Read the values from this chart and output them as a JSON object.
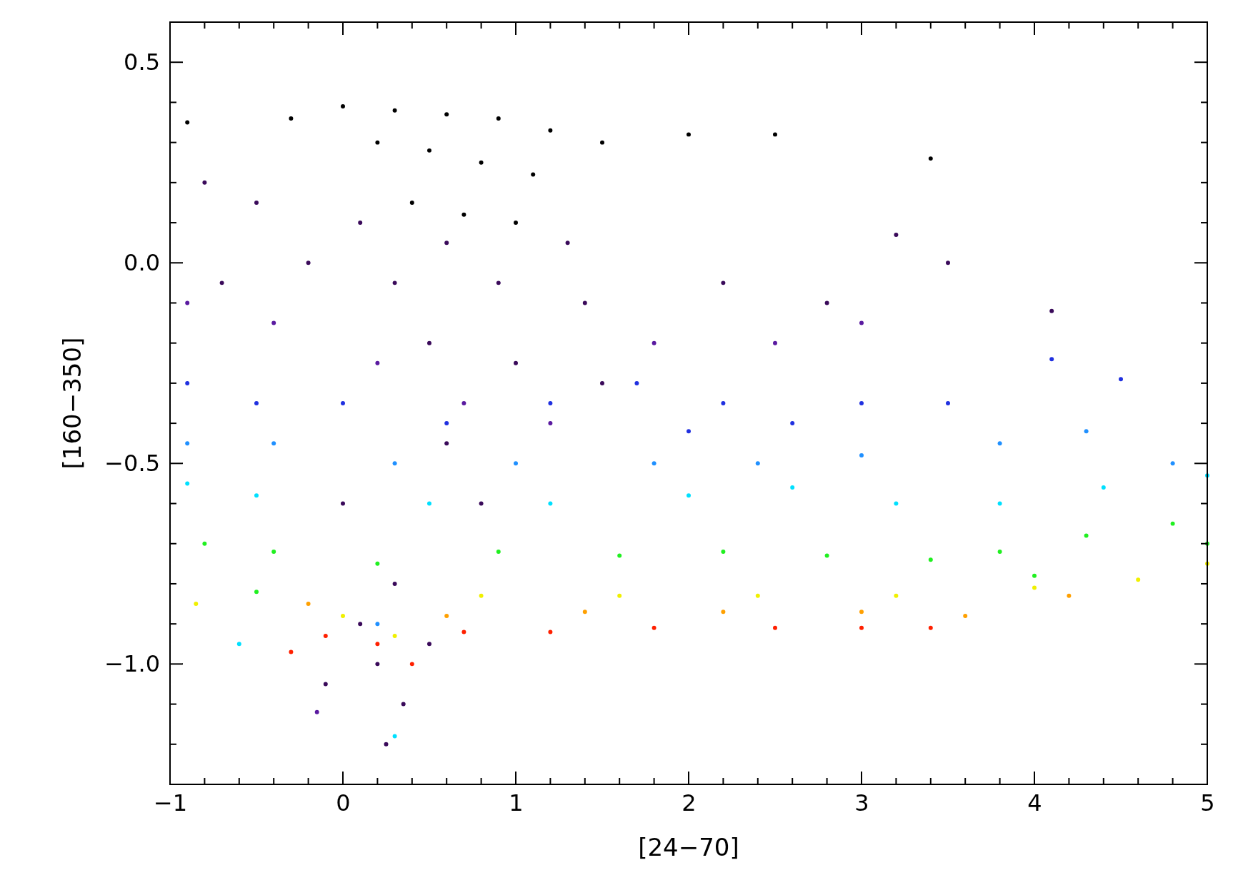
{
  "chart_data": {
    "type": "scatter",
    "xlabel": "[24−70]",
    "ylabel": "[160−350]",
    "xlim": [
      -1,
      5
    ],
    "ylim": [
      -1.3,
      0.6
    ],
    "xticks": [
      {
        "value": -1,
        "label": "−1"
      },
      0,
      1,
      2,
      3,
      4,
      5,
      {
        "value": -0.8,
        "label": null
      },
      {
        "value": -0.6,
        "label": null
      },
      {
        "value": -0.4,
        "label": null
      },
      {
        "value": -0.2,
        "label": null
      },
      {
        "value": 0.2,
        "label": null
      },
      {
        "value": 0.4,
        "label": null
      },
      {
        "value": 0.6,
        "label": null
      },
      {
        "value": 0.8,
        "label": null
      },
      {
        "value": 1.2,
        "label": null
      },
      {
        "value": 1.4,
        "label": null
      },
      {
        "value": 1.6,
        "label": null
      },
      {
        "value": 1.8,
        "label": null
      },
      {
        "value": 2.2,
        "label": null
      },
      {
        "value": 2.4,
        "label": null
      },
      {
        "value": 2.6,
        "label": null
      },
      {
        "value": 2.8,
        "label": null
      },
      {
        "value": 3.2,
        "label": null
      },
      {
        "value": 3.4,
        "label": null
      },
      {
        "value": 3.6,
        "label": null
      },
      {
        "value": 3.8,
        "label": null
      },
      {
        "value": 4.2,
        "label": null
      },
      {
        "value": 4.4,
        "label": null
      },
      {
        "value": 4.6,
        "label": null
      },
      {
        "value": 4.8,
        "label": null
      }
    ],
    "yticks": [
      {
        "value": 0.5,
        "label": "0.5"
      },
      {
        "value": 0,
        "label": "0.0"
      },
      {
        "value": -0.5,
        "label": "−0.5"
      },
      {
        "value": -1,
        "label": "−1.0"
      },
      {
        "value": 0.4,
        "label": null
      },
      {
        "value": 0.3,
        "label": null
      },
      {
        "value": 0.2,
        "label": null
      },
      {
        "value": 0.1,
        "label": null
      },
      {
        "value": -0.1,
        "label": null
      },
      {
        "value": -0.2,
        "label": null
      },
      {
        "value": -0.3,
        "label": null
      },
      {
        "value": -0.4,
        "label": null
      },
      {
        "value": -0.6,
        "label": null
      },
      {
        "value": -0.7,
        "label": null
      },
      {
        "value": -0.8,
        "label": null
      },
      {
        "value": -0.9,
        "label": null
      },
      {
        "value": -1.1,
        "label": null
      },
      {
        "value": -1.2,
        "label": null
      }
    ],
    "marker": "circle",
    "grid": false,
    "series": [
      {
        "x": [
          0.0,
          0.3,
          0.6,
          0.9,
          1.2,
          0.2,
          0.5,
          0.8,
          1.1,
          -0.3,
          -0.9,
          1.5,
          2.0,
          2.5,
          3.4,
          0.4,
          0.7,
          1.0,
          -0.8,
          -0.5,
          0.1,
          0.6,
          1.3,
          -0.2,
          0.3,
          0.9,
          1.4,
          -0.7,
          2.2,
          2.8,
          3.2,
          3.5,
          4.1,
          0.5,
          1.0,
          0.0,
          0.3,
          0.2,
          0.35,
          0.25,
          0.5,
          0.1,
          0.8,
          0.6,
          1.5,
          -0.1,
          -0.9,
          -0.4,
          0.2,
          1.8,
          2.5,
          3.0,
          1.2,
          0.7,
          -0.15,
          -0.9,
          -0.5,
          0.0,
          0.6,
          1.2,
          1.7,
          2.2,
          2.6,
          3.0,
          3.5,
          4.1,
          4.5,
          2.0,
          -0.9,
          -0.4,
          0.3,
          1.0,
          1.8,
          2.4,
          3.0,
          3.8,
          4.3,
          4.8,
          0.2,
          -0.9,
          -0.5,
          0.5,
          1.2,
          2.0,
          2.6,
          3.2,
          3.8,
          4.4,
          5.0,
          -0.6,
          0.3,
          -0.8,
          -0.4,
          0.2,
          0.9,
          1.6,
          2.2,
          2.8,
          3.4,
          3.8,
          4.3,
          4.8,
          5.0,
          -0.5,
          4.0,
          -0.85,
          0.0,
          0.8,
          1.6,
          2.4,
          3.2,
          4.0,
          4.6,
          5.0,
          0.3,
          -0.2,
          0.6,
          1.4,
          2.2,
          3.0,
          3.6,
          4.2,
          -0.3,
          0.2,
          0.7,
          1.2,
          1.8,
          2.5,
          3.0,
          3.4,
          0.4,
          -0.1
        ],
        "values": [
          0.39,
          0.38,
          0.37,
          0.36,
          0.33,
          0.3,
          0.28,
          0.25,
          0.22,
          0.36,
          0.35,
          0.3,
          0.32,
          0.32,
          0.26,
          0.15,
          0.12,
          0.1,
          0.2,
          0.15,
          0.1,
          0.05,
          0.05,
          0.0,
          -0.05,
          -0.05,
          -0.1,
          -0.05,
          -0.05,
          -0.1,
          0.07,
          0.0,
          -0.12,
          -0.2,
          -0.25,
          -0.6,
          -0.8,
          -1.0,
          -1.1,
          -1.2,
          -0.95,
          -0.9,
          -0.6,
          -0.45,
          -0.3,
          -1.05,
          -0.1,
          -0.15,
          -0.25,
          -0.2,
          -0.2,
          -0.15,
          -0.4,
          -0.35,
          -1.12,
          -0.3,
          -0.35,
          -0.35,
          -0.4,
          -0.35,
          -0.3,
          -0.35,
          -0.4,
          -0.35,
          -0.35,
          -0.24,
          -0.29,
          -0.42,
          -0.45,
          -0.45,
          -0.5,
          -0.5,
          -0.5,
          -0.5,
          -0.48,
          -0.45,
          -0.42,
          -0.5,
          -0.9,
          -0.55,
          -0.58,
          -0.6,
          -0.6,
          -0.58,
          -0.56,
          -0.6,
          -0.6,
          -0.56,
          -0.53,
          -0.95,
          -1.18,
          -0.7,
          -0.72,
          -0.75,
          -0.72,
          -0.73,
          -0.72,
          -0.73,
          -0.74,
          -0.72,
          -0.68,
          -0.65,
          -0.7,
          -0.82,
          -0.78,
          -0.85,
          -0.88,
          -0.83,
          -0.83,
          -0.83,
          -0.83,
          -0.81,
          -0.79,
          -0.75,
          -0.93,
          -0.85,
          -0.88,
          -0.87,
          -0.87,
          -0.87,
          -0.88,
          -0.83,
          -0.97,
          -0.95,
          -0.92,
          -0.92,
          -0.91,
          -0.91,
          -0.91,
          -0.91,
          -1.0,
          -0.93
        ],
        "colors": [
          "#000000",
          "#000000",
          "#000000",
          "#000000",
          "#000000",
          "#000000",
          "#000000",
          "#000000",
          "#000000",
          "#000000",
          "#000000",
          "#000000",
          "#000000",
          "#000000",
          "#000000",
          "#000000",
          "#000000",
          "#000000",
          "#3a0a5a",
          "#3a0a5a",
          "#3a0a5a",
          "#3a0a5a",
          "#3a0a5a",
          "#3a0a5a",
          "#3a0a5a",
          "#3a0a5a",
          "#3a0a5a",
          "#3a0a5a",
          "#3a0a5a",
          "#3a0a5a",
          "#3a0a5a",
          "#3a0a5a",
          "#3a0a5a",
          "#3a0a5a",
          "#3a0a5a",
          "#3a0a5a",
          "#3a0a5a",
          "#3a0a5a",
          "#3a0a5a",
          "#3a0a5a",
          "#3a0a5a",
          "#3a0a5a",
          "#3a0a5a",
          "#3a0a5a",
          "#3a0a5a",
          "#3a0a5a",
          "#5a1aa0",
          "#5a1aa0",
          "#5a1aa0",
          "#5a1aa0",
          "#5a1aa0",
          "#5a1aa0",
          "#5a1aa0",
          "#5a1aa0",
          "#5a1aa0",
          "#2030e0",
          "#2030e0",
          "#2030e0",
          "#2030e0",
          "#2030e0",
          "#2030e0",
          "#2030e0",
          "#2030e0",
          "#2030e0",
          "#2030e0",
          "#2030e0",
          "#2030e0",
          "#2030e0",
          "#2090ff",
          "#2090ff",
          "#2090ff",
          "#2090ff",
          "#2090ff",
          "#2090ff",
          "#2090ff",
          "#2090ff",
          "#2090ff",
          "#2090ff",
          "#2090ff",
          "#00e0ff",
          "#00e0ff",
          "#00e0ff",
          "#00e0ff",
          "#00e0ff",
          "#00e0ff",
          "#00e0ff",
          "#00e0ff",
          "#00e0ff",
          "#00e0ff",
          "#00e0ff",
          "#00e0ff",
          "#20f020",
          "#20f020",
          "#20f020",
          "#20f020",
          "#20f020",
          "#20f020",
          "#20f020",
          "#20f020",
          "#20f020",
          "#20f020",
          "#20f020",
          "#20f020",
          "#20f020",
          "#20f020",
          "#f0f000",
          "#f0f000",
          "#f0f000",
          "#f0f000",
          "#f0f000",
          "#f0f000",
          "#f0f000",
          "#f0f000",
          "#f0f000",
          "#f0f000",
          "#ffa000",
          "#ffa000",
          "#ffa000",
          "#ffa000",
          "#ffa000",
          "#ffa000",
          "#ffa000",
          "#ff2000",
          "#ff2000",
          "#ff2000",
          "#ff2000",
          "#ff2000",
          "#ff2000",
          "#ff2000",
          "#ff2000",
          "#ff2000",
          "#ff2000"
        ]
      }
    ]
  }
}
